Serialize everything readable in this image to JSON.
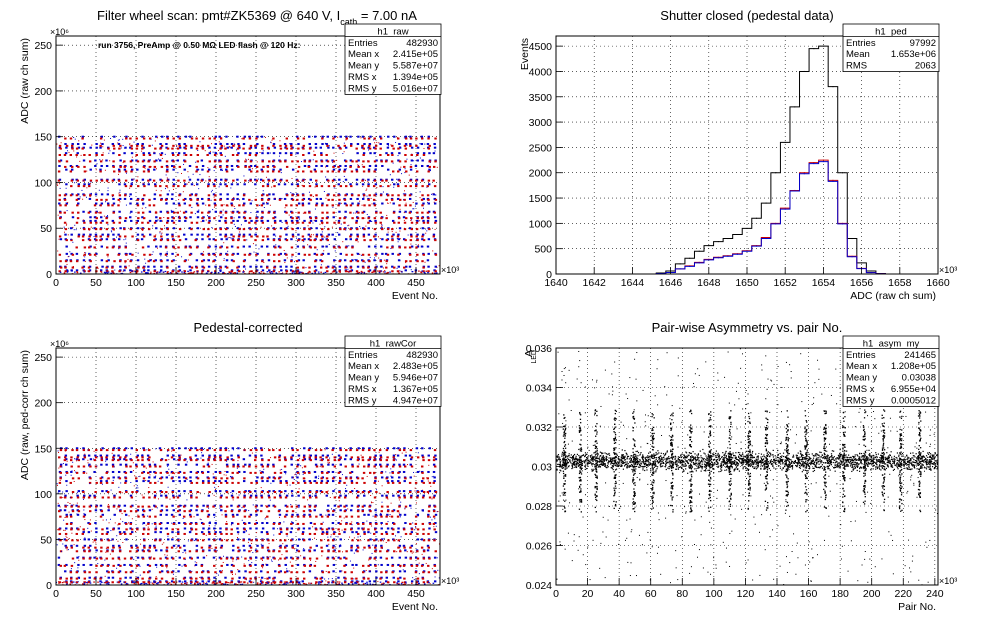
{
  "chart_data": [
    {
      "id": "h1_raw",
      "type": "scatter",
      "title": "Filter wheel scan: pmt#ZK5369 @   640 V, I",
      "title_sub": "cath",
      "title_tail": " = 7.00 nA",
      "annotation": "run 3756, PreAmp @ 0.50 MΩ LED flash @  120 Hz:",
      "xlabel": "Event No.",
      "ylabel": "ADC (raw ch sum)",
      "x_exponent": "×10³",
      "y_exponent": "×10⁶",
      "xlim": [
        0,
        480
      ],
      "ylim": [
        0,
        260
      ],
      "xticks": [
        0,
        50,
        100,
        150,
        200,
        250,
        300,
        350,
        400,
        450
      ],
      "xtick_labels": [
        "0",
        "50",
        "100",
        "150",
        "200",
        "250",
        "300",
        "350",
        "400",
        "450"
      ],
      "yticks": [
        0,
        50,
        100,
        150,
        200,
        250
      ],
      "ytick_labels": [
        "0",
        "50",
        "100",
        "150",
        "200",
        "250"
      ],
      "grid": true,
      "stats": {
        "name": "h1_raw",
        "rows": [
          [
            "Entries",
            "482930"
          ],
          [
            "Mean x",
            "2.415e+05"
          ],
          [
            "Mean y",
            "5.587e+07"
          ],
          [
            "RMS x",
            "1.394e+05"
          ],
          [
            "RMS y",
            "5.016e+07"
          ]
        ]
      },
      "levels": [
        0,
        1,
        3,
        8,
        15,
        22,
        30,
        38,
        43,
        50,
        58,
        62,
        68,
        77,
        82,
        87,
        98,
        103,
        114,
        118,
        124,
        132,
        138,
        142,
        150
      ],
      "series": [
        {
          "color": "#0000cc",
          "values": [
            4,
            8,
            15,
            22,
            30,
            38,
            43,
            50,
            58,
            62,
            68,
            77,
            82,
            87,
            98,
            103,
            114,
            118,
            124,
            132,
            138,
            142,
            150
          ]
        },
        {
          "color": "#cc0000",
          "values": [
            3,
            7,
            14,
            21,
            29,
            37,
            41,
            49,
            56,
            61,
            67,
            75,
            81,
            86,
            96,
            102,
            112,
            117,
            123,
            130,
            137,
            140,
            148
          ]
        }
      ]
    },
    {
      "id": "h1_ped",
      "type": "line",
      "title": "Shutter closed (pedestal data)",
      "xlabel": "ADC (raw ch sum)",
      "ylabel": "Events",
      "x_exponent": "×10³",
      "xlim": [
        1640,
        1660
      ],
      "ylim": [
        0,
        4700
      ],
      "xticks": [
        1640,
        1642,
        1644,
        1646,
        1648,
        1650,
        1652,
        1654,
        1656,
        1658,
        1660
      ],
      "xtick_labels": [
        "1640",
        "1642",
        "1644",
        "1646",
        "1648",
        "1650",
        "1652",
        "1654",
        "1656",
        "1658",
        "1660"
      ],
      "yticks": [
        0,
        500,
        1000,
        1500,
        2000,
        2500,
        3000,
        3500,
        4000,
        4500
      ],
      "ytick_labels": [
        "0",
        "500",
        "1000",
        "1500",
        "2000",
        "2500",
        "3000",
        "3500",
        "4000",
        "4500"
      ],
      "grid": true,
      "stats": {
        "name": "h1_ped",
        "rows": [
          [
            "Entries",
            "97992"
          ],
          [
            "Mean",
            "1.653e+06"
          ],
          [
            "RMS",
            "2063"
          ]
        ]
      },
      "x": [
        1645.0,
        1645.5,
        1646.0,
        1646.5,
        1647.0,
        1647.5,
        1648.0,
        1648.5,
        1649.0,
        1649.5,
        1650.0,
        1650.5,
        1651.0,
        1651.5,
        1652.0,
        1652.5,
        1653.0,
        1653.5,
        1654.0,
        1654.5,
        1655.0,
        1655.5,
        1656.0,
        1656.5,
        1657.0
      ],
      "series": [
        {
          "color": "#000000",
          "values": [
            0,
            20,
            60,
            200,
            310,
            450,
            560,
            640,
            700,
            780,
            900,
            1100,
            1400,
            2000,
            2600,
            3300,
            4000,
            4450,
            4500,
            3700,
            2000,
            700,
            220,
            60,
            10
          ]
        },
        {
          "color": "#cc0000",
          "values": [
            0,
            10,
            30,
            100,
            160,
            230,
            290,
            330,
            360,
            400,
            460,
            560,
            720,
            1000,
            1300,
            1650,
            2000,
            2200,
            2250,
            1850,
            1000,
            350,
            110,
            30,
            5
          ]
        },
        {
          "color": "#0000cc",
          "values": [
            0,
            10,
            30,
            100,
            150,
            220,
            280,
            320,
            350,
            390,
            450,
            550,
            700,
            990,
            1280,
            1640,
            1980,
            2180,
            2220,
            1830,
            990,
            340,
            105,
            28,
            4
          ]
        }
      ]
    },
    {
      "id": "h1_rawCor",
      "type": "scatter",
      "title": "Pedestal-corrected",
      "xlabel": "Event No.",
      "ylabel": "ADC (raw, ped-corr ch sum)",
      "x_exponent": "×10³",
      "y_exponent": "×10⁶",
      "xlim": [
        0,
        480
      ],
      "ylim": [
        0,
        260
      ],
      "xticks": [
        0,
        50,
        100,
        150,
        200,
        250,
        300,
        350,
        400,
        450
      ],
      "xtick_labels": [
        "0",
        "50",
        "100",
        "150",
        "200",
        "250",
        "300",
        "350",
        "400",
        "450"
      ],
      "yticks": [
        0,
        50,
        100,
        150,
        200,
        250
      ],
      "ytick_labels": [
        "0",
        "50",
        "100",
        "150",
        "200",
        "250"
      ],
      "grid": true,
      "stats": {
        "name": "h1_rawCor",
        "rows": [
          [
            "Entries",
            "482930"
          ],
          [
            "Mean x",
            "2.483e+05"
          ],
          [
            "Mean y",
            "5.946e+07"
          ],
          [
            "RMS x",
            "1.367e+05"
          ],
          [
            "RMS y",
            "4.947e+07"
          ]
        ]
      },
      "levels": [
        0,
        1,
        3,
        8,
        15,
        22,
        30,
        38,
        43,
        50,
        58,
        62,
        68,
        77,
        82,
        87,
        98,
        103,
        114,
        118,
        124,
        132,
        138,
        142,
        150
      ],
      "series": [
        {
          "color": "#0000cc",
          "values": [
            4,
            8,
            15,
            22,
            30,
            38,
            43,
            50,
            58,
            62,
            68,
            77,
            82,
            87,
            98,
            103,
            114,
            118,
            124,
            132,
            138,
            142,
            150
          ]
        },
        {
          "color": "#cc0000",
          "values": [
            3,
            7,
            14,
            21,
            29,
            37,
            41,
            49,
            56,
            61,
            67,
            75,
            81,
            86,
            96,
            102,
            112,
            117,
            123,
            130,
            137,
            140,
            148
          ]
        }
      ]
    },
    {
      "id": "h1_asym_my",
      "type": "scatter",
      "title": "Pair-wise Asymmetry vs. pair No.",
      "xlabel": "Pair No.",
      "ylabel": "A",
      "ylabel_sub": "LED",
      "x_exponent": "×10³",
      "xlim": [
        0,
        242
      ],
      "ylim": [
        0.024,
        0.036
      ],
      "xticks": [
        0,
        20,
        40,
        60,
        80,
        100,
        120,
        140,
        160,
        180,
        200,
        220,
        240
      ],
      "xtick_labels": [
        "0",
        "20",
        "40",
        "60",
        "80",
        "100",
        "120",
        "140",
        "160",
        "180",
        "200",
        "220",
        "240"
      ],
      "yticks": [
        0.024,
        0.026,
        0.028,
        0.03,
        0.032,
        0.034,
        0.036
      ],
      "ytick_labels": [
        "0.024",
        "0.026",
        "0.028",
        "0.03",
        "0.032",
        "0.034",
        "0.036"
      ],
      "grid": true,
      "stats": {
        "name": "h1_asym_my",
        "rows": [
          [
            "Entries",
            "241465"
          ],
          [
            "Mean x",
            "1.208e+05"
          ],
          [
            "Mean y",
            "0.03038"
          ],
          [
            "RMS x",
            "6.955e+04"
          ],
          [
            "RMS y",
            "0.0005012"
          ]
        ]
      },
      "band": {
        "center": 0.0303,
        "half_width": 0.0004
      },
      "spikes_x": [
        5,
        15,
        25,
        37,
        49,
        61,
        73,
        85,
        97,
        110,
        122,
        133,
        146,
        158,
        170,
        182,
        195,
        207,
        218,
        230
      ]
    }
  ]
}
